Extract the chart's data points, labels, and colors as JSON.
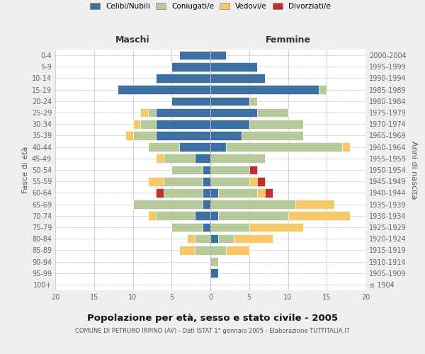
{
  "age_groups": [
    "100+",
    "95-99",
    "90-94",
    "85-89",
    "80-84",
    "75-79",
    "70-74",
    "65-69",
    "60-64",
    "55-59",
    "50-54",
    "45-49",
    "40-44",
    "35-39",
    "30-34",
    "25-29",
    "20-24",
    "15-19",
    "10-14",
    "5-9",
    "0-4"
  ],
  "birth_years": [
    "≤ 1904",
    "1905-1909",
    "1910-1914",
    "1915-1919",
    "1920-1924",
    "1925-1929",
    "1930-1934",
    "1935-1939",
    "1940-1944",
    "1945-1949",
    "1950-1954",
    "1955-1959",
    "1960-1964",
    "1965-1969",
    "1970-1974",
    "1975-1979",
    "1980-1984",
    "1985-1989",
    "1990-1994",
    "1995-1999",
    "2000-2004"
  ],
  "maschi": {
    "celibi": [
      0,
      0,
      0,
      0,
      0,
      1,
      2,
      1,
      1,
      1,
      1,
      2,
      4,
      7,
      7,
      7,
      5,
      12,
      7,
      5,
      4
    ],
    "coniugati": [
      0,
      0,
      0,
      2,
      2,
      4,
      5,
      9,
      5,
      5,
      4,
      4,
      4,
      3,
      2,
      1,
      0,
      0,
      0,
      0,
      0
    ],
    "vedovi": [
      0,
      0,
      0,
      2,
      1,
      0,
      1,
      0,
      0,
      2,
      0,
      1,
      0,
      1,
      1,
      1,
      0,
      0,
      0,
      0,
      0
    ],
    "divorziati": [
      0,
      0,
      0,
      0,
      0,
      0,
      0,
      0,
      1,
      0,
      0,
      0,
      0,
      0,
      0,
      0,
      0,
      0,
      0,
      0,
      0
    ]
  },
  "femmine": {
    "nubili": [
      0,
      1,
      0,
      0,
      1,
      0,
      1,
      0,
      1,
      0,
      0,
      0,
      2,
      4,
      5,
      6,
      5,
      14,
      7,
      6,
      2
    ],
    "coniugate": [
      0,
      0,
      1,
      2,
      2,
      5,
      9,
      11,
      5,
      5,
      5,
      7,
      15,
      8,
      7,
      4,
      1,
      1,
      0,
      0,
      0
    ],
    "vedove": [
      0,
      0,
      0,
      3,
      5,
      7,
      8,
      5,
      1,
      1,
      0,
      0,
      1,
      0,
      0,
      0,
      0,
      0,
      0,
      0,
      0
    ],
    "divorziate": [
      0,
      0,
      0,
      0,
      0,
      0,
      0,
      0,
      1,
      1,
      1,
      0,
      0,
      0,
      0,
      0,
      0,
      0,
      0,
      0,
      0
    ]
  },
  "colors": {
    "celibi": "#3d6fa0",
    "coniugati": "#b5c99a",
    "vedovi": "#f5c96a",
    "divorziati": "#c0302a"
  },
  "title": "Popolazione per età, sesso e stato civile - 2005",
  "subtitle": "COMUNE DI PETRURO IRPINO (AV) - Dati ISTAT 1° gennaio 2005 - Elaborazione TUTTITALIA.IT",
  "label_maschi": "Maschi",
  "label_femmine": "Femmine",
  "ylabel_left": "Fasce di età",
  "ylabel_right": "Anni di nascita",
  "legend_labels": [
    "Celibi/Nubili",
    "Coniugati/e",
    "Vedovi/e",
    "Divorziati/e"
  ],
  "xlim": 20,
  "bg_color": "#efefef",
  "plot_bg": "#ffffff"
}
